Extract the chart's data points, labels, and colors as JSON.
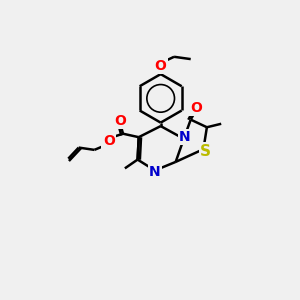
{
  "background_color": "#f0f0f0",
  "bond_color": "#000000",
  "bond_width": 1.8,
  "font_size": 10,
  "colors": {
    "N": "#0000cc",
    "O": "#ff0000",
    "S": "#bbbb00",
    "C": "#000000"
  },
  "figsize": [
    3.0,
    3.0
  ],
  "dpi": 100,
  "xlim": [
    0,
    10
  ],
  "ylim": [
    0,
    10
  ]
}
